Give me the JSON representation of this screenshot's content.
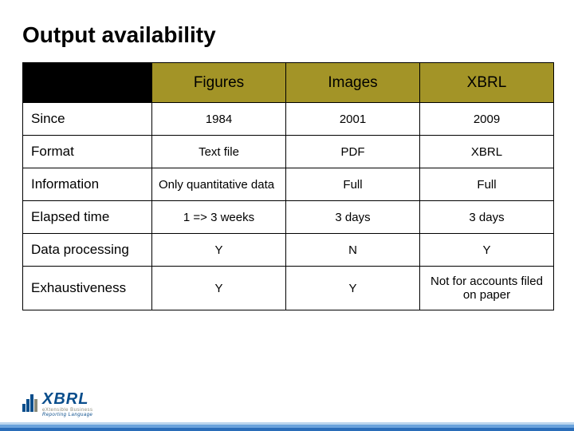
{
  "title": "Output availability",
  "table": {
    "header_bg": "#a39427",
    "columns": [
      "Figures",
      "Images",
      "XBRL"
    ],
    "rows": [
      {
        "label": "Since",
        "cells": [
          "1984",
          "2001",
          "2009"
        ],
        "leftAlign": [
          false,
          false,
          false
        ]
      },
      {
        "label": "Format",
        "cells": [
          "Text file",
          "PDF",
          "XBRL"
        ],
        "leftAlign": [
          false,
          false,
          false
        ]
      },
      {
        "label": "Information",
        "cells": [
          "Only quantitative data",
          "Full",
          "Full"
        ],
        "leftAlign": [
          true,
          false,
          false
        ]
      },
      {
        "label": "Elapsed time",
        "cells": [
          "1 => 3 weeks",
          "3 days",
          "3 days"
        ],
        "leftAlign": [
          false,
          false,
          false
        ]
      },
      {
        "label": "Data processing",
        "cells": [
          "Y",
          "N",
          "Y"
        ],
        "leftAlign": [
          false,
          false,
          false
        ]
      },
      {
        "label": "Exhaustiveness",
        "cells": [
          "Y",
          "Y",
          "Not for accounts filed on paper"
        ],
        "leftAlign": [
          false,
          false,
          false
        ]
      }
    ]
  },
  "logo": {
    "name": "XBRL",
    "tagline1": "eXtensible Business",
    "tagline2": "Reporting Language"
  }
}
